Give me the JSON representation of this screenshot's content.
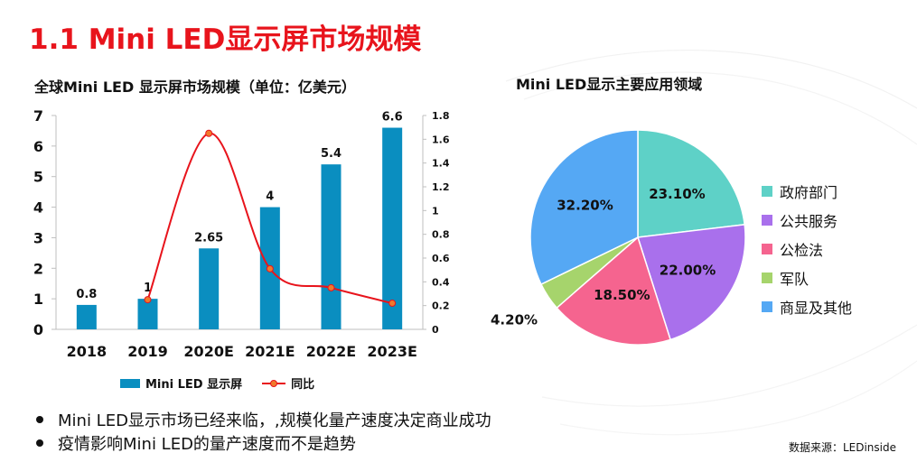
{
  "page": {
    "title": "1.1 Mini LED显示屏市场规模",
    "source": "数据来源：LEDinside",
    "bullets": [
      "Mini LED显示市场已经来临，,规模化量产速度决定商业成功",
      "疫情影响Mini LED的量产速度而不是趋势"
    ]
  },
  "chart_data": [
    {
      "type": "bar",
      "title": "全球Mini LED 显示屏市场规模（单位：亿美元）",
      "categories": [
        "2018",
        "2019",
        "2020E",
        "2021E",
        "2022E",
        "2023E"
      ],
      "series": [
        {
          "name": "Mini LED 显示屏",
          "type": "bar",
          "axis": "left",
          "values": [
            0.8,
            1,
            2.65,
            4,
            5.4,
            6.6
          ],
          "color": "#0a8ec0"
        },
        {
          "name": "同比",
          "type": "line",
          "axis": "right",
          "values": [
            null,
            0.25,
            1.65,
            0.51,
            0.35,
            0.22
          ],
          "color": "#e8141c",
          "marker_color": "#f07a2c"
        }
      ],
      "data_labels": [
        "0.8",
        "1",
        "2.65",
        "4",
        "5.4",
        "6.6"
      ],
      "ylim": [
        0,
        7
      ],
      "y_ticks": [
        "0",
        "1",
        "2",
        "3",
        "4",
        "5",
        "6",
        "7"
      ],
      "y2lim": [
        0,
        1.8
      ],
      "y2_ticks": [
        "0",
        "0.2",
        "0.4",
        "0.6",
        "0.8",
        "1",
        "1.2",
        "1.4",
        "1.6",
        "1.8"
      ],
      "legend_position": "bottom",
      "grid": false
    },
    {
      "type": "pie",
      "title": "Mini LED显示主要应用领域",
      "slices": [
        {
          "label": "政府部门",
          "value": 23.1,
          "text": "23.10%",
          "color": "#5ed1c7"
        },
        {
          "label": "公共服务",
          "value": 22.0,
          "text": "22.00%",
          "color": "#a970ec"
        },
        {
          "label": "公检法",
          "value": 18.5,
          "text": "18.50%",
          "color": "#f5648f"
        },
        {
          "label": "军队",
          "value": 4.2,
          "text": "4.20%",
          "color": "#a6d46c"
        },
        {
          "label": "商显及其他",
          "value": 32.2,
          "text": "32.20%",
          "color": "#55a8f4"
        }
      ],
      "legend_position": "right"
    }
  ]
}
